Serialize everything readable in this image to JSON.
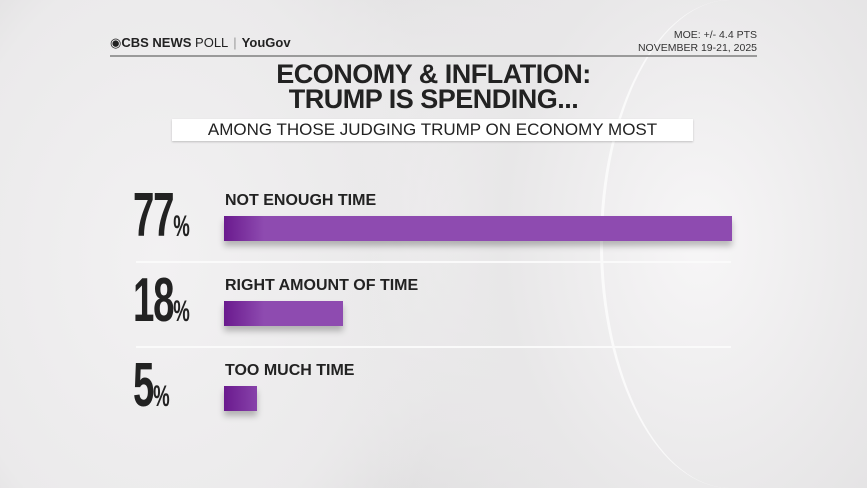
{
  "header": {
    "brand": "CBS NEWS",
    "brand_suffix": "POLL",
    "partner": "YouGov",
    "moe": "MOE: +/- 4.4 PTS",
    "dates": "NOVEMBER 19-21, 2025"
  },
  "chart_data": {
    "type": "bar",
    "orientation": "horizontal",
    "title": "ECONOMY & INFLATION:",
    "title_line2": "TRUMP IS SPENDING...",
    "subtitle": "AMONG THOSE JUDGING TRUMP ON ECONOMY MOST",
    "categories": [
      "NOT ENOUGH TIME",
      "RIGHT AMOUNT OF TIME",
      "TOO MUCH TIME"
    ],
    "values": [
      77,
      18,
      5
    ],
    "value_labels": [
      "77",
      "18",
      "5"
    ],
    "unit": "%",
    "bar_color": "#8e4bb0",
    "bar_color_dark": "#6a1a8e",
    "xlim": [
      0,
      77
    ]
  }
}
